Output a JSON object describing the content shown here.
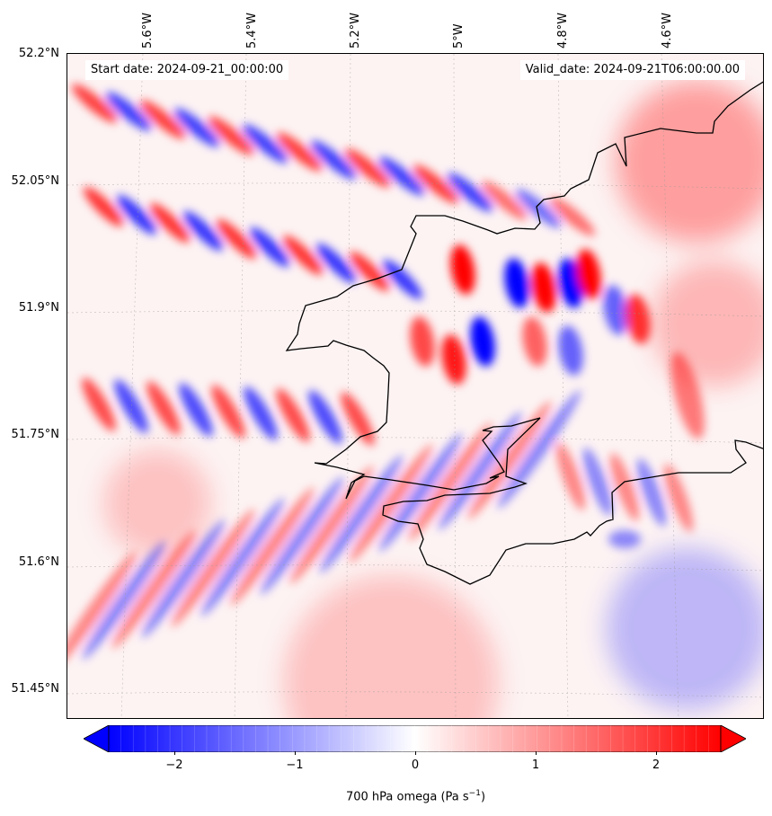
{
  "map": {
    "start_date": "Start date: 2024-09-21_00:00:00",
    "valid_date": "Valid_date: 2024-09-21T06:00:00.00",
    "lon_labels": [
      "5.6°W",
      "5.4°W",
      "5.2°W",
      "5°W",
      "4.8°W",
      "4.6°W"
    ],
    "lat_labels": [
      "52.2°N",
      "52.05°N",
      "51.9°N",
      "51.75°N",
      "51.6°N",
      "51.45°N"
    ],
    "colors": {
      "negative": "#0000ff",
      "positive": "#ff0000",
      "neutral": "#ffffff",
      "coastline": "#000000"
    }
  },
  "colorbar": {
    "ticks": [
      "−2",
      "−1",
      "0",
      "1",
      "2"
    ],
    "range": [
      -2.5,
      2.5
    ],
    "label": "700 hPa omega (Pa s",
    "label_exp": "−1",
    "label_end": ")",
    "extend": "both"
  }
}
